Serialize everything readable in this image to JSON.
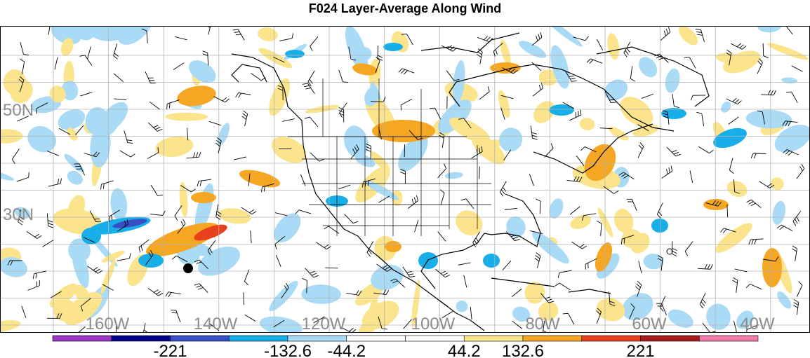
{
  "title": "F024 Layer-Average Along Wind",
  "map": {
    "region": "North America and surrounding Pacific and Atlantic oceans",
    "latitude_labels": [
      "50N",
      "30N"
    ],
    "longitude_labels": [
      "160W",
      "140W",
      "120W",
      "100W",
      "80W",
      "60W",
      "40W"
    ],
    "graticule_color": "#b4b4b4",
    "label_color": "#8c8c8c",
    "coastline_color": "#000000",
    "markers": [
      {
        "name": "filled-circle-marker",
        "symbol": "filled-circle"
      },
      {
        "name": "open-circle-marker",
        "symbol": "open-circle"
      }
    ]
  },
  "colorbar": {
    "tick_labels": [
      "-221",
      "-132.6",
      "-44.2",
      "44.2",
      "132.6",
      "221"
    ],
    "colors": [
      "#9b37c6",
      "#00008b",
      "#3a4fc7",
      "#18aee8",
      "#a9daf6",
      "#ffffff",
      "#ffffff",
      "#fbe48c",
      "#f5a623",
      "#e8401c",
      "#a61c1c",
      "#f07aa8"
    ]
  }
}
